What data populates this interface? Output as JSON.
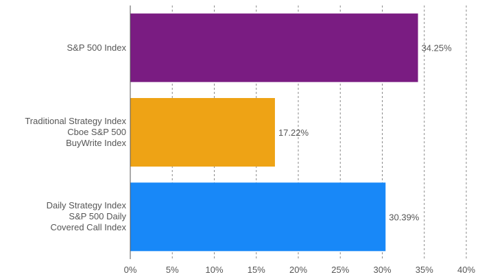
{
  "chart_data": {
    "type": "bar",
    "orientation": "horizontal",
    "categories": [
      [
        "S&P 500 Index"
      ],
      [
        "Traditional Strategy Index",
        "Cboe S&P 500",
        "BuyWrite Index"
      ],
      [
        "Daily Strategy Index",
        "S&P 500 Daily",
        "Covered Call Index"
      ]
    ],
    "values": [
      34.25,
      17.22,
      30.39
    ],
    "value_labels": [
      "34.25%",
      "17.22%",
      "30.39%"
    ],
    "colors": [
      "#7a1c82",
      "#eea315",
      "#1888f8"
    ],
    "xlim": [
      0,
      40
    ],
    "xticks": [
      0,
      5,
      10,
      15,
      20,
      25,
      30,
      35,
      40
    ],
    "xtick_labels": [
      "0%",
      "5%",
      "10%",
      "15%",
      "20%",
      "25%",
      "30%",
      "35%",
      "40%"
    ],
    "grid": "vertical-dashed",
    "title": "",
    "xlabel": "",
    "ylabel": ""
  }
}
